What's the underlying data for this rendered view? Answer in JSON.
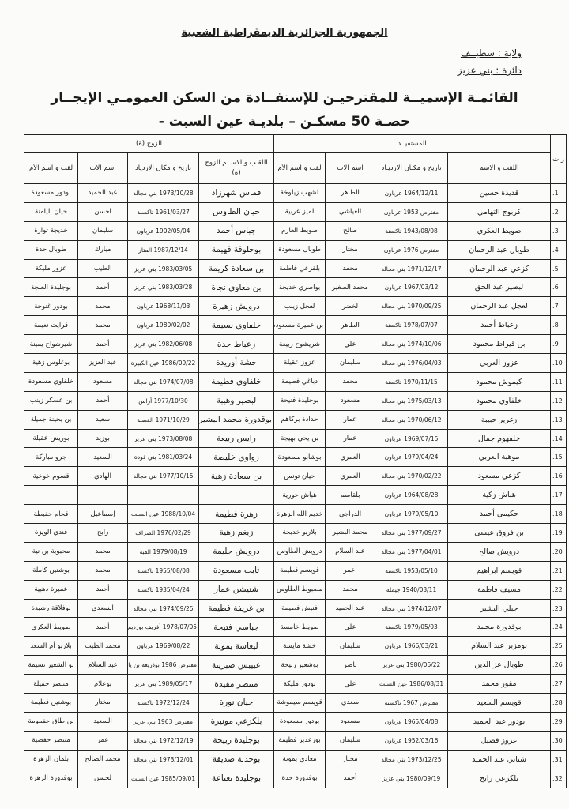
{
  "header": {
    "republic": "الجمهورية الجزائرية الديمقراطية الشعبية",
    "wilaya": "ولاية : سطيــف",
    "daira": "دائرة : بني عزيز",
    "title": "القائمـة الإسميــة للمقترحيـن للإستفــادة من السكن العمومـي الإيجــار",
    "subtitle": "حصـة 50 مسكـن – بلديـة عين السبت -"
  },
  "table": {
    "group_beneficiary": "المستفيــد",
    "group_spouse": "الزوج (ة)",
    "col_num": "ر.ت",
    "col_name": "اللقب و الاسم",
    "col_birth": "تاريخ و مكـان الازديـاد",
    "col_father": "اسم الاب",
    "col_mother": "لقب و اسم الأم",
    "col_spouse_name": "اللقـب و الاســم الزوج (ة)",
    "col_spouse_birth": "تاريخ و مكان الازدياد",
    "col_spouse_father": "اسم الاب",
    "col_spouse_mother": "لقب و اسم الأم",
    "rows": [
      [
        "1.",
        "قديدة حسين",
        "1964/12/11 عرباون",
        "الطاهر",
        "لشهب زيلوخة",
        "قماس شهرزاد",
        "1973/10/28 بني مجالد",
        "عبد الحميد",
        "بودور مسعودة"
      ],
      [
        "2.",
        "كربوج التهامي",
        "مفترض 1953 عرباون",
        "العياشي",
        "لميز عربية",
        "حيان الطاوس",
        "1961/03/27 تاكسنة",
        "احسن",
        "حيان اليامنة"
      ],
      [
        "3.",
        "صويط العكري",
        "1943/08/08 تاكسنة",
        "صالح",
        "صويط العارم",
        "جباس أحمد",
        "1902/05/04 عرباون",
        "سليمان",
        "خديجة توارة"
      ],
      [
        "4.",
        "طوبال عبد الرحمان",
        "مفترض 1976 عرباون",
        "مختار",
        "طوبال مسعودة",
        "بوحلوفة فهيمة",
        "1987/12/14 المتار",
        "مبارك",
        "طوبال حدة"
      ],
      [
        "5.",
        "كزعي عبد الرحمان",
        "1971/12/17 بني مجالد",
        "محمد",
        "بلقزعي فاطمة",
        "بن سعادة كريمة",
        "1983/03/05 بني عزيز",
        "الطيب",
        "عزوز مليكة"
      ],
      [
        "6.",
        "لبصير عبد الحق",
        "1967/03/12 عرباون",
        "محمد الصغير",
        "بواصري خديجة",
        "بن معاوي نجاة",
        "1983/03/28 بني عزيز",
        "أحمد",
        "بوجليدة العلجة"
      ],
      [
        "7.",
        "لعجل عبد الرحمان",
        "1970/09/25 بني مجالد",
        "لخضر",
        "لعجل زينب",
        "درويش زهيرة",
        "1968/11/03 عرباون",
        "محمد",
        "بودور غنوجة"
      ],
      [
        "8.",
        "زعباط أحمد",
        "1978/07/07 تاكسنة",
        "الطاهر",
        "بن عميرة مسعودة",
        "خلفاوي نسيمة",
        "1980/02/02 عرباون",
        "محمد",
        "قرايت نعيمة"
      ],
      [
        "9.",
        "بن قيراط محمود",
        "1974/10/06 بني مجالد",
        "علي",
        "شريشوح ربيعة",
        "زعباط حدة",
        "1982/06/08 بني عزيز",
        "أحمد",
        "شيرشواح يمينة"
      ],
      [
        "10.",
        "عزوز العربي",
        "1976/04/03 بني مجالد",
        "سليمان",
        "عزوز عقيلة",
        "خشة أوريدة",
        "1986/09/22 عين الكبيرة",
        "عبد العزيز",
        "بوغلوس زهية"
      ],
      [
        "11.",
        "كيموش محمود",
        "1970/11/15 تاكسنة",
        "محمد",
        "دباغي فطيمة",
        "خلفاوي فطيمة",
        "1974/07/08 بني مجالد",
        "مسعود",
        "خلفاوي مسعودة"
      ],
      [
        "12.",
        "خلفاوي محمود",
        "1975/03/13 بني مجالد",
        "مسعود",
        "بوجليدة فتيحة",
        "لبصير وهيبة",
        "1977/10/30 أراس",
        "أحمد",
        "بن عسكر زينب"
      ],
      [
        "13.",
        "زغرير حبيبة",
        "1970/06/12 بني مجالد",
        "عمار",
        "حدادة بركاهم",
        "بوقدورة محمد البشير",
        "1971/10/29 القصبة",
        "سعيد",
        "بن بخينة جميلة"
      ],
      [
        "14.",
        "خلفهوم جمال",
        "1969/07/15 عرباون",
        "عمار",
        "بن يحي بهيجة",
        "رايس ربيعة",
        "1973/08/08 بني عزيز",
        "بوزيد",
        "بوريش عقيلة"
      ],
      [
        "15.",
        "موهبة العربي",
        "1979/04/24 عرباون",
        "العمري",
        "بوشابو مسعودة",
        "زواوي خليصة",
        "1981/03/24 بني فودة",
        "السعيد",
        "جرو مباركة"
      ],
      [
        "16.",
        "كزعي مسعود",
        "1970/02/22 بني مجالد",
        "العمري",
        "حيان تونس",
        "بن سعادة زهية",
        "1977/10/15 بني مجالد",
        "الهادي",
        "قسوم خوخية"
      ],
      [
        "17.",
        "هباش زكية",
        "1964/08/28 عرباون",
        "بلقاسم",
        "هباش حورية",
        "",
        "",
        "",
        ""
      ],
      [
        "18.",
        "حكيمي أحمد",
        "1979/05/10 عرباون",
        "الدراجي",
        "خديم الله الزهرة",
        "زهرة فطيمة",
        "1988/10/04 عين السبت",
        "إسماعيل",
        "قحام حفيظة"
      ],
      [
        "19.",
        "بن فروق عيسى",
        "1977/09/27 بني مجالد",
        "محمد البشير",
        "بلاربو خديجة",
        "زيغم زهية",
        "1976/02/29 الصراف",
        "رابح",
        "فندي الويزة"
      ],
      [
        "20.",
        "درويش صالح",
        "1977/04/01 بني مجالد",
        "عبد السلام",
        "درويش الطاوس",
        "درويش حليمة",
        "1979/08/19 القبة",
        "محمد",
        "محبوبة بن نية"
      ],
      [
        "21.",
        "قويسم ابراهيم",
        "1953/05/10 تاكسنة",
        "أعمر",
        "قويسم فطيمة",
        "ثابت مسعودة",
        "1955/08/08 تاكسنة",
        "محمد",
        "بوشنين كاملة"
      ],
      [
        "22.",
        "مسيف فاطمة",
        "1940/03/11 جيملة",
        "محمد",
        "مصبوط الطاوس",
        "شنيشن عمار",
        "1935/04/24 تاكسنة",
        "أحمد",
        "عميرة دهبية"
      ],
      [
        "23.",
        "جبلي البشير",
        "1974/12/07 بني مجالد",
        "عبد الحميد",
        "فنيش فطيمة",
        "بن غريفة فطيمة",
        "1974/09/25 بني مجالد",
        "السعدي",
        "بوفلاقة رشيدة"
      ],
      [
        "24.",
        "بوقدورة محمد",
        "1979/05/03 تاكسنة",
        "علي",
        "صويط خامسة",
        "جباسي فتيحة",
        "1978/07/05 أفريف بورديم",
        "أحمد",
        "صويط العكري"
      ],
      [
        "25.",
        "بومزبر عبد السلام",
        "1966/03/21 عرباون",
        "سليمان",
        "خشة مايسة",
        "ليعاشة يمونة",
        "1969/08/22 عرباون",
        "محمد الطيب",
        "بلاربو أم السعد"
      ],
      [
        "26.",
        "طوبال عز الدين",
        "1980/06/22 بني عزيز",
        "ناصر",
        "بوشعير ربيحة",
        "عبيبس صبرينة",
        "مفترض 1986 بوذريعة بن ياجيس",
        "عبد السلام",
        "بو الشعير نسيمة"
      ],
      [
        "27.",
        "مقور محمد",
        "1986/08/31 عين السبت",
        "علي",
        "بودور مليكة",
        "منتصر مفيدة",
        "1989/05/17 بني عزيز",
        "بوعلام",
        "منتصر جميلة"
      ],
      [
        "28.",
        "قويسم السعيد",
        "مفترض 1967 تاكسنة",
        "سعدي",
        "قويسم سيموشة",
        "حيان نورة",
        "1972/12/24 تاكسنة",
        "مختار",
        "بوشنين فطيمة"
      ],
      [
        "29.",
        "بودور عبد الحميد",
        "1965/04/08 عرباون",
        "مسعود",
        "بودور مسعودة",
        "بلكزعي مونيرة",
        "مفترض 1963 بني عزيز",
        "السعيد",
        "بن طاق حفمومة"
      ],
      [
        "30.",
        "عزوز فضيل",
        "1952/03/16 عرباون",
        "سليمان",
        "بوزعدير فطيمة",
        "بوجليدة ربيحة",
        "1972/12/19 بني مجالد",
        "عمر",
        "منتصر حفصية"
      ],
      [
        "31.",
        "شناني عبد الحميد",
        "1973/12/25 بني مجالد",
        "مختار",
        "معادي يمونة",
        "بوحدبة صديقة",
        "1973/12/01 بني مجالد",
        "محمد الصالح",
        "بلمان الزهرة"
      ],
      [
        "32.",
        "بلكزعي رابح",
        "1980/09/19 بني عزيز",
        "أحمد",
        "بوقدورة حدة",
        "بوجليدة نعناعة",
        "1985/09/01 عين السبت",
        "لحسن",
        "بوقدورة الزهرة"
      ]
    ]
  }
}
